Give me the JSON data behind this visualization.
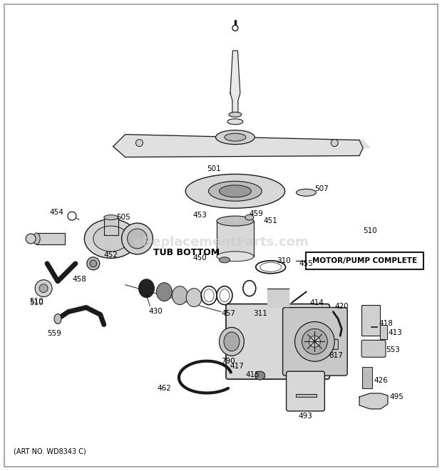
{
  "bg_color": "#ffffff",
  "inner_bg": "#f0f0ee",
  "border_color": "#888888",
  "dgray": "#1a1a1a",
  "mgray": "#555555",
  "lgray": "#aaaaaa",
  "vlight": "#dddddd",
  "watermark": "eReplacementParts.com",
  "art_no": "(ART NO. WD8343 C)",
  "motor_pump_label": "MOTOR/PUMP COMPLETE",
  "tub_bottom_label": "TUB BOTTOM",
  "fig_w": 6.2,
  "fig_h": 6.61,
  "dpi": 100
}
